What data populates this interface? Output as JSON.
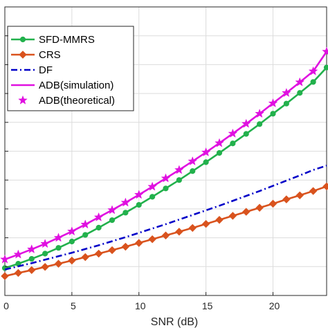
{
  "chart_data": {
    "type": "line",
    "title": "",
    "xlabel": "SNR (dB)",
    "ylabel": "",
    "xlim": [
      0,
      24
    ],
    "ylim": [
      0,
      10
    ],
    "xticks": [
      0,
      5,
      10,
      15,
      20
    ],
    "yticks": [
      0,
      1,
      2,
      3,
      4,
      5,
      6,
      7,
      8,
      9
    ],
    "grid": true,
    "legend_position": "top-left",
    "x": [
      0,
      1,
      2,
      3,
      4,
      5,
      6,
      7,
      8,
      9,
      10,
      11,
      12,
      13,
      14,
      15,
      16,
      17,
      18,
      19,
      20,
      21,
      22,
      23,
      24
    ],
    "series": [
      {
        "name": "SFD-MMRS",
        "color": "#22b14c",
        "marker": "circle",
        "line": "solid",
        "values": [
          0.95,
          1.1,
          1.27,
          1.45,
          1.65,
          1.87,
          2.1,
          2.35,
          2.61,
          2.87,
          3.14,
          3.42,
          3.71,
          4.0,
          4.31,
          4.62,
          4.94,
          5.27,
          5.6,
          5.94,
          6.3,
          6.65,
          7.02,
          7.4,
          7.9
        ]
      },
      {
        "name": "CRS",
        "color": "#d9531e",
        "marker": "diamond",
        "line": "solid",
        "values": [
          0.67,
          0.78,
          0.88,
          0.99,
          1.1,
          1.21,
          1.33,
          1.45,
          1.57,
          1.69,
          1.82,
          1.95,
          2.08,
          2.21,
          2.34,
          2.48,
          2.62,
          2.76,
          2.9,
          3.04,
          3.18,
          3.33,
          3.47,
          3.62,
          3.78
        ]
      },
      {
        "name": "DF",
        "color": "#0000c8",
        "marker": "none",
        "line": "dashdot",
        "values": [
          0.9,
          1.01,
          1.12,
          1.24,
          1.36,
          1.48,
          1.61,
          1.74,
          1.88,
          2.02,
          2.17,
          2.32,
          2.47,
          2.63,
          2.79,
          2.95,
          3.11,
          3.28,
          3.45,
          3.62,
          3.8,
          3.98,
          4.16,
          4.35,
          4.5
        ]
      },
      {
        "name": "ADB(simulation)",
        "color": "#e010e0",
        "marker": "none",
        "line": "solid",
        "values": [
          1.25,
          1.42,
          1.6,
          1.79,
          2.0,
          2.22,
          2.46,
          2.71,
          2.96,
          3.22,
          3.49,
          3.77,
          4.06,
          4.35,
          4.65,
          4.96,
          5.28,
          5.61,
          5.95,
          6.3,
          6.66,
          7.02,
          7.39,
          7.77,
          8.45
        ]
      },
      {
        "name": "ADB(theoretical)",
        "color": "#e010e0",
        "marker": "star",
        "line": "none",
        "values": [
          1.25,
          1.42,
          1.6,
          1.79,
          2.0,
          2.22,
          2.46,
          2.71,
          2.96,
          3.22,
          3.49,
          3.77,
          4.06,
          4.35,
          4.65,
          4.96,
          5.28,
          5.61,
          5.95,
          6.3,
          6.66,
          7.02,
          7.39,
          7.77,
          8.45
        ]
      }
    ]
  }
}
